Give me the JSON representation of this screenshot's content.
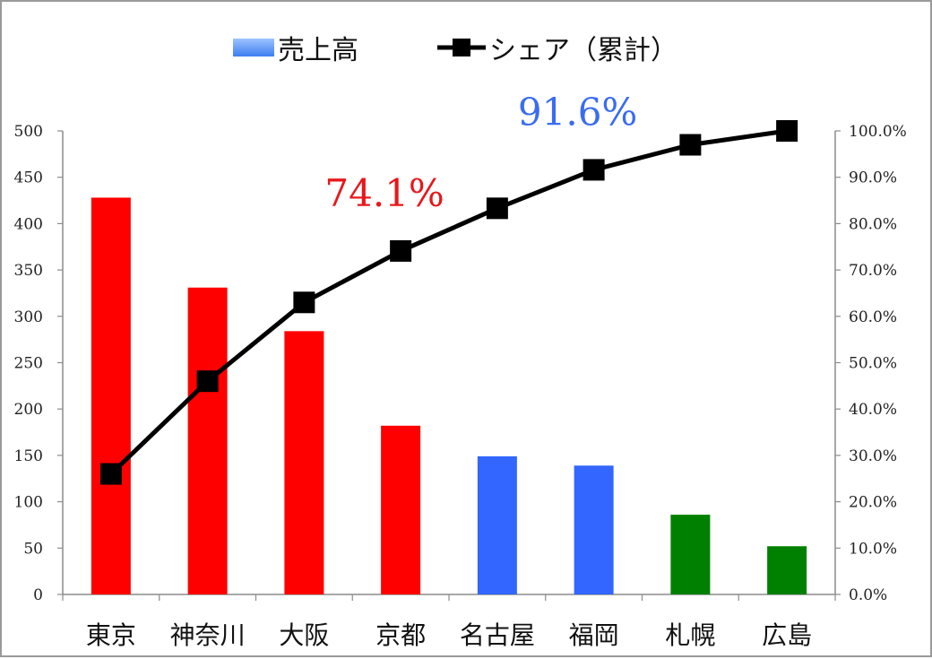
{
  "chart_data": {
    "type": "bar",
    "categories": [
      "東京",
      "神奈川",
      "大阪",
      "京都",
      "名古屋",
      "福岡",
      "札幌",
      "広島"
    ],
    "series": [
      {
        "name": "売上高",
        "type": "bar",
        "axis": "left",
        "values": [
          428,
          331,
          284,
          182,
          149,
          139,
          86,
          52
        ],
        "colors": [
          "#ff0000",
          "#ff0000",
          "#ff0000",
          "#ff0000",
          "#3366ff",
          "#3366ff",
          "#008000",
          "#008000"
        ]
      },
      {
        "name": "シェア（累計）",
        "type": "line",
        "axis": "right",
        "values": [
          26.0,
          46.0,
          63.0,
          74.1,
          83.3,
          91.6,
          97.0,
          100.0
        ],
        "color": "#000000",
        "marker": "square"
      }
    ],
    "y_left": {
      "min": 0,
      "max": 500,
      "ticks": [
        "0",
        "50",
        "100",
        "150",
        "200",
        "250",
        "300",
        "350",
        "400",
        "450",
        "500"
      ]
    },
    "y_right": {
      "min": 0,
      "max": 100,
      "ticks": [
        "0.0%",
        "10.0%",
        "20.0%",
        "30.0%",
        "40.0%",
        "50.0%",
        "60.0%",
        "70.0%",
        "80.0%",
        "90.0%",
        "100.0%"
      ]
    },
    "legend": {
      "placement": "top",
      "bar_label": "売上高",
      "line_label": "シェア（累計）"
    },
    "annotations": [
      {
        "text": "74.1%",
        "color": "#e8171b",
        "near_category": 3
      },
      {
        "text": "91.6%",
        "color": "#3a6cf0",
        "near_category": 5
      }
    ],
    "grid": false
  }
}
